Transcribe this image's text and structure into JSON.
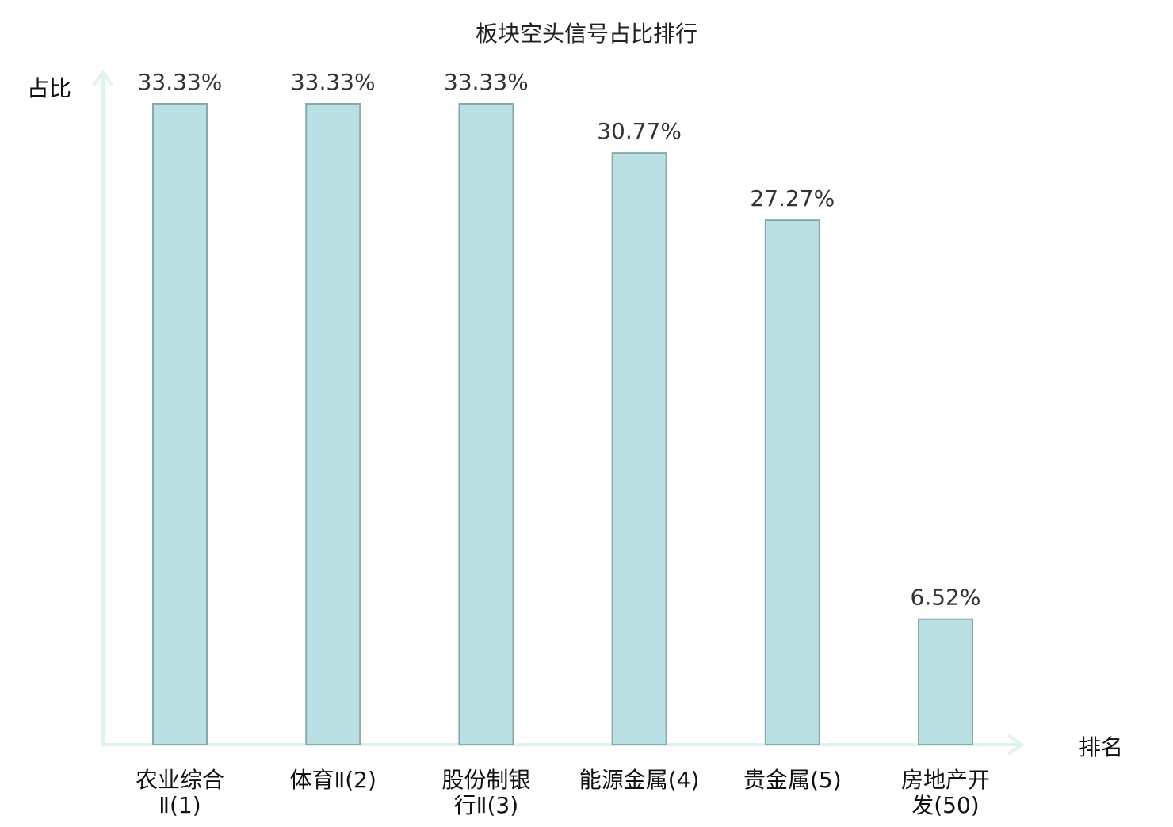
{
  "chart_data": {
    "type": "bar",
    "title": "板块空头信号占比排行",
    "ylabel": "占比",
    "xlabel": "排名",
    "ylim": [
      0,
      0.35
    ],
    "grid": false,
    "categories": [
      [
        "农业综合",
        "Ⅱ(1)"
      ],
      [
        "体育Ⅱ(2)"
      ],
      [
        "股份制银",
        "行Ⅱ(3)"
      ],
      [
        "能源金属(4)"
      ],
      [
        "贵金属(5)"
      ],
      [
        "房地产开",
        "发(50)"
      ]
    ],
    "values": [
      0.3333,
      0.3333,
      0.3333,
      0.3077,
      0.2727,
      0.0652
    ],
    "value_labels": [
      "33.33%",
      "33.33%",
      "33.33%",
      "30.77%",
      "27.27%",
      "6.52%"
    ],
    "highlight_index": 5,
    "colors": {
      "bar_fill": "#bbe0e3",
      "bar_stroke": "#8aaaa9",
      "axis": "#e0f2ef",
      "highlight_text": "#e8141c",
      "text": "#111111",
      "value_text": "#333333"
    }
  }
}
